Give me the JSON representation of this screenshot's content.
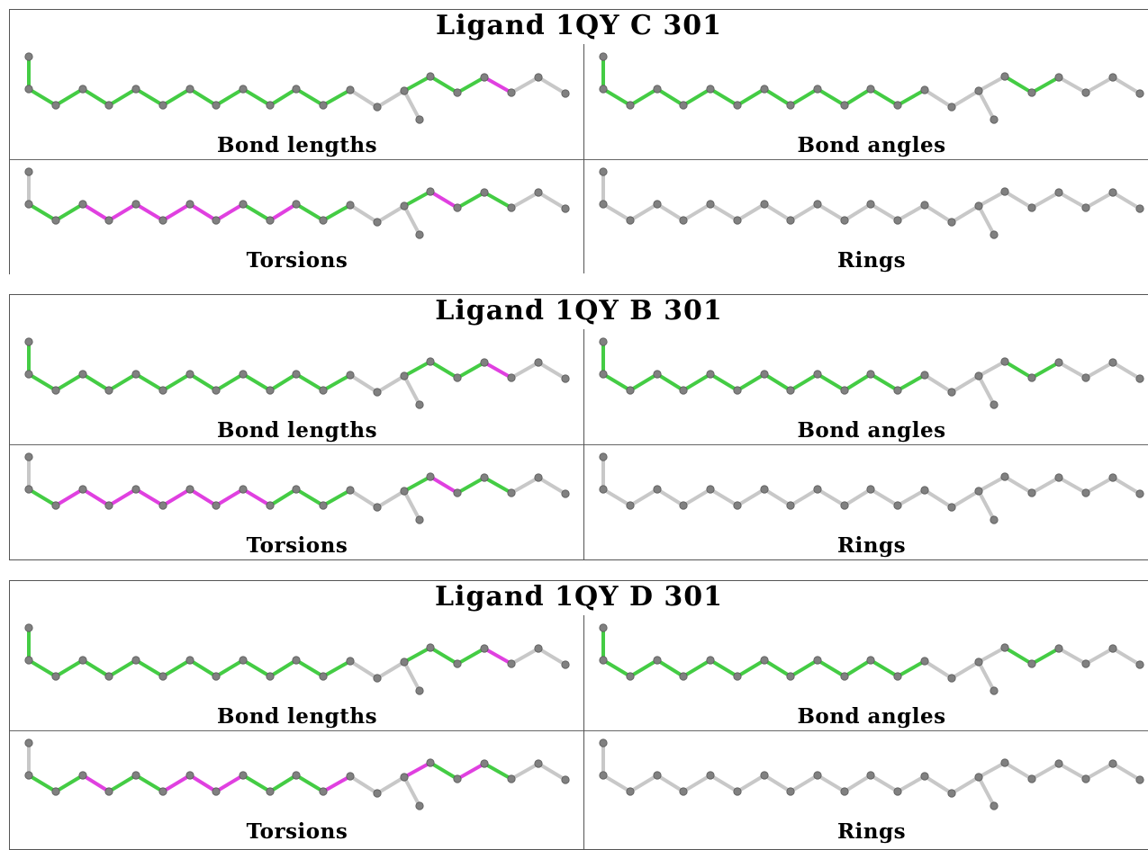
{
  "panel_labels": {
    "bond_lengths": "Bond lengths",
    "bond_angles": "Bond angles",
    "torsions": "Torsions",
    "rings": "Rings"
  },
  "colors": {
    "ok": "#44cc44",
    "outlier": "#e040e0",
    "neutral": "#c8c8c8",
    "atom": "#808080"
  },
  "ligands": [
    {
      "title": "Ligand 1QY C 301",
      "bond_status": {
        "bond_lengths": [
          "ok",
          "ok",
          "ok",
          "ok",
          "ok",
          "ok",
          "ok",
          "ok",
          "ok",
          "ok",
          "ok",
          "ok",
          "ok",
          "neutral",
          "ok",
          "ok",
          "ok",
          "outlier",
          "neutral",
          "neutral"
        ],
        "bond_angles": [
          "ok",
          "ok",
          "ok",
          "ok",
          "ok",
          "ok",
          "ok",
          "ok",
          "ok",
          "ok",
          "ok",
          "ok",
          "ok",
          "neutral",
          "neutral",
          "ok",
          "ok",
          "neutral",
          "neutral",
          "neutral"
        ],
        "torsions": [
          "neutral",
          "ok",
          "ok",
          "outlier",
          "outlier",
          "outlier",
          "outlier",
          "outlier",
          "outlier",
          "ok",
          "outlier",
          "ok",
          "ok",
          "neutral",
          "ok",
          "outlier",
          "ok",
          "ok",
          "neutral",
          "neutral"
        ],
        "rings": [
          "neutral",
          "neutral",
          "neutral",
          "neutral",
          "neutral",
          "neutral",
          "neutral",
          "neutral",
          "neutral",
          "neutral",
          "neutral",
          "neutral",
          "neutral",
          "neutral",
          "neutral",
          "neutral",
          "neutral",
          "neutral",
          "neutral",
          "neutral"
        ]
      }
    },
    {
      "title": "Ligand 1QY B 301",
      "bond_status": {
        "bond_lengths": [
          "ok",
          "ok",
          "ok",
          "ok",
          "ok",
          "ok",
          "ok",
          "ok",
          "ok",
          "ok",
          "ok",
          "ok",
          "ok",
          "neutral",
          "ok",
          "ok",
          "ok",
          "outlier",
          "neutral",
          "neutral"
        ],
        "bond_angles": [
          "ok",
          "ok",
          "ok",
          "ok",
          "ok",
          "ok",
          "ok",
          "ok",
          "ok",
          "ok",
          "ok",
          "ok",
          "ok",
          "neutral",
          "neutral",
          "ok",
          "ok",
          "neutral",
          "neutral",
          "neutral"
        ],
        "torsions": [
          "neutral",
          "ok",
          "outlier",
          "outlier",
          "outlier",
          "outlier",
          "outlier",
          "outlier",
          "outlier",
          "outlier",
          "ok",
          "ok",
          "ok",
          "neutral",
          "ok",
          "outlier",
          "ok",
          "ok",
          "neutral",
          "neutral"
        ],
        "rings": [
          "neutral",
          "neutral",
          "neutral",
          "neutral",
          "neutral",
          "neutral",
          "neutral",
          "neutral",
          "neutral",
          "neutral",
          "neutral",
          "neutral",
          "neutral",
          "neutral",
          "neutral",
          "neutral",
          "neutral",
          "neutral",
          "neutral",
          "neutral"
        ]
      }
    },
    {
      "title": "Ligand 1QY D 301",
      "bond_status": {
        "bond_lengths": [
          "ok",
          "ok",
          "ok",
          "ok",
          "ok",
          "ok",
          "ok",
          "ok",
          "ok",
          "ok",
          "ok",
          "ok",
          "ok",
          "neutral",
          "ok",
          "ok",
          "ok",
          "outlier",
          "neutral",
          "neutral"
        ],
        "bond_angles": [
          "ok",
          "ok",
          "ok",
          "ok",
          "ok",
          "ok",
          "ok",
          "ok",
          "ok",
          "ok",
          "ok",
          "ok",
          "ok",
          "neutral",
          "neutral",
          "ok",
          "ok",
          "neutral",
          "neutral",
          "neutral"
        ],
        "torsions": [
          "neutral",
          "ok",
          "ok",
          "outlier",
          "ok",
          "ok",
          "outlier",
          "outlier",
          "outlier",
          "ok",
          "ok",
          "ok",
          "outlier",
          "neutral",
          "outlier",
          "ok",
          "outlier",
          "ok",
          "neutral",
          "neutral"
        ],
        "rings": [
          "neutral",
          "neutral",
          "neutral",
          "neutral",
          "neutral",
          "neutral",
          "neutral",
          "neutral",
          "neutral",
          "neutral",
          "neutral",
          "neutral",
          "neutral",
          "neutral",
          "neutral",
          "neutral",
          "neutral",
          "neutral",
          "neutral",
          "neutral"
        ]
      }
    }
  ]
}
